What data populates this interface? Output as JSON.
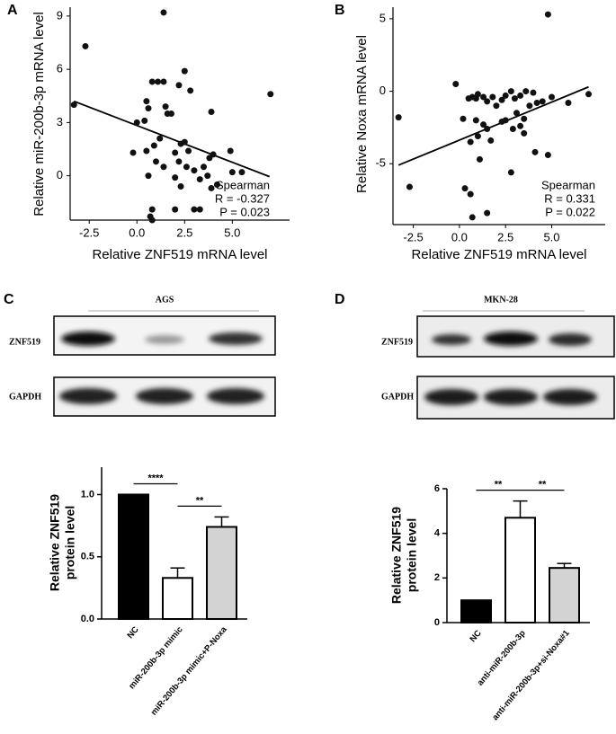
{
  "panel_labels": [
    "A",
    "B",
    "C",
    "D"
  ],
  "blots": [
    {
      "title": "AGS",
      "rows": [
        "ZNF519",
        "GAPDH"
      ]
    },
    {
      "title": "MKN-28",
      "rows": [
        "ZNF519",
        "GAPDH"
      ]
    }
  ],
  "chart_data": [
    {
      "type": "scatter",
      "xlabel": "Relative ZNF519 mRNA level",
      "ylabel": "Relative miR-200b-3p mRNA level",
      "xlim": [
        -3.5,
        8
      ],
      "xticks": [
        -2.5,
        {
          "value": 0,
          "label": "0.0"
        },
        2.5,
        {
          "value": 5,
          "label": "5.0"
        }
      ],
      "ylim": [
        -2.5,
        9.5
      ],
      "yticks": [
        0,
        3,
        6,
        9
      ],
      "color": "#111111",
      "x": [
        -3.3,
        -2.7,
        1.4,
        7.0,
        0.0,
        0.4,
        0.5,
        0.6,
        0.8,
        1.1,
        1.4,
        1.5,
        1.6,
        1.8,
        2.2,
        2.5,
        2.8,
        3.9,
        -0.2,
        0.5,
        0.9,
        1.2,
        1.0,
        1.4,
        0.6,
        2.0,
        2.3,
        2.5,
        2.7,
        2.2,
        2.0,
        2.6,
        3.0,
        3.3,
        3.5,
        3.8,
        4.0,
        3.7,
        4.2,
        4.9,
        5.0,
        5.5,
        2.3,
        3.0,
        3.3,
        2.0,
        0.8,
        0.7,
        0.8,
        3.9
      ],
      "values": [
        4.0,
        7.3,
        9.2,
        4.6,
        3.0,
        3.1,
        4.2,
        3.8,
        5.3,
        5.3,
        5.3,
        3.9,
        3.5,
        3.5,
        5.1,
        5.9,
        4.8,
        3.6,
        1.3,
        1.4,
        1.7,
        2.1,
        0.8,
        0.5,
        0.0,
        1.3,
        1.8,
        1.9,
        1.4,
        0.8,
        -0.1,
        0.5,
        0.3,
        -0.2,
        0.5,
        1.0,
        1.2,
        0.0,
        -0.5,
        1.4,
        0.2,
        0.2,
        -0.6,
        -1.9,
        -1.9,
        -1.9,
        -1.9,
        -2.3,
        -2.5,
        -0.7
      ],
      "trendline": {
        "x": [
          -3.3,
          6.95
        ],
        "values": [
          4.2,
          -0.05
        ]
      },
      "annotations": [
        "Spearman",
        "R = -0.327",
        "P = 0.023"
      ]
    },
    {
      "type": "scatter",
      "xlabel": "Relative ZNF519 mRNA level",
      "ylabel": "Relative Noxa mRNA level",
      "xlim": [
        -3.6,
        7.9
      ],
      "xticks": [
        -2.5,
        {
          "value": 0,
          "label": "0.0"
        },
        2.5,
        {
          "value": 5,
          "label": "5.0"
        }
      ],
      "ylim": [
        -9.2,
        5.8
      ],
      "yticks": [
        -5,
        0,
        5
      ],
      "color": "#111111",
      "x": [
        -3.3,
        -2.7,
        4.8,
        7.0,
        -0.2,
        0.2,
        0.5,
        0.7,
        0.9,
        1.0,
        1.3,
        1.5,
        1.8,
        2.0,
        2.3,
        2.5,
        2.8,
        3.0,
        3.3,
        3.6,
        4.0,
        4.5,
        5.0,
        5.9,
        0.9,
        1.3,
        1.5,
        1.7,
        1.0,
        0.6,
        2.3,
        2.5,
        2.9,
        3.3,
        3.5,
        3.8,
        4.2,
        3.5,
        4.8,
        4.1,
        2.8,
        1.1,
        0.3,
        0.6,
        0.7,
        1.5,
        3.1
      ],
      "values": [
        -1.8,
        -6.6,
        5.3,
        -0.2,
        0.5,
        -1.9,
        -0.5,
        -0.4,
        -0.5,
        -0.2,
        -0.4,
        -0.7,
        -0.4,
        -1.0,
        -0.6,
        -0.3,
        0.0,
        -0.5,
        -0.3,
        0.0,
        -0.1,
        -0.7,
        -0.4,
        -0.8,
        -2.0,
        -2.3,
        -2.6,
        -3.4,
        -3.1,
        -3.5,
        -2.1,
        -2.0,
        -2.6,
        -2.4,
        -1.9,
        -1.0,
        -0.8,
        -2.9,
        -4.4,
        -4.2,
        -5.6,
        -4.7,
        -6.7,
        -7.1,
        -8.7,
        -8.4,
        -1.5
      ],
      "trendline": {
        "x": [
          -3.3,
          7.0
        ],
        "values": [
          -5.1,
          0.3
        ]
      },
      "annotations": [
        "Spearman",
        "R = 0.331",
        "P = 0.022"
      ]
    },
    {
      "type": "bar",
      "ylabel": [
        "Relative ZNF519",
        "protein level"
      ],
      "categories": [
        "NC",
        "miR-200b-3p mimic",
        "miR-200b-3p mimic+P-Noxa"
      ],
      "values": [
        1.0,
        0.33,
        0.74
      ],
      "errors": [
        0,
        0.08,
        0.08
      ],
      "colors": [
        "#000000",
        "#ffffff",
        "#d3d3d3"
      ],
      "ylim": [
        0,
        1.22
      ],
      "yticks": [
        {
          "value": 0,
          "label": "0.0"
        },
        {
          "value": 0.5,
          "label": "0.5"
        },
        {
          "value": 1,
          "label": "1.0"
        }
      ],
      "significance": [
        {
          "label": "****",
          "from": 0,
          "to": 1
        },
        {
          "label": "**",
          "from": 1,
          "to": 2
        }
      ]
    },
    {
      "type": "bar",
      "ylabel": [
        "Relative ZNF519",
        "protein level"
      ],
      "categories": [
        "NC",
        "anti-miR-200b-3p",
        "anti-miR-200b-3p+si-Noxa#1"
      ],
      "values": [
        1.0,
        4.7,
        2.45
      ],
      "errors": [
        0,
        0.75,
        0.2
      ],
      "colors": [
        "#000000",
        "#ffffff",
        "#d3d3d3"
      ],
      "ylim": [
        0,
        6
      ],
      "yticks": [
        0,
        2,
        4,
        6
      ],
      "significance": [
        {
          "label": "**",
          "from": 0,
          "to": 1
        },
        {
          "label": "**",
          "from": 1,
          "to": 2
        }
      ]
    }
  ]
}
